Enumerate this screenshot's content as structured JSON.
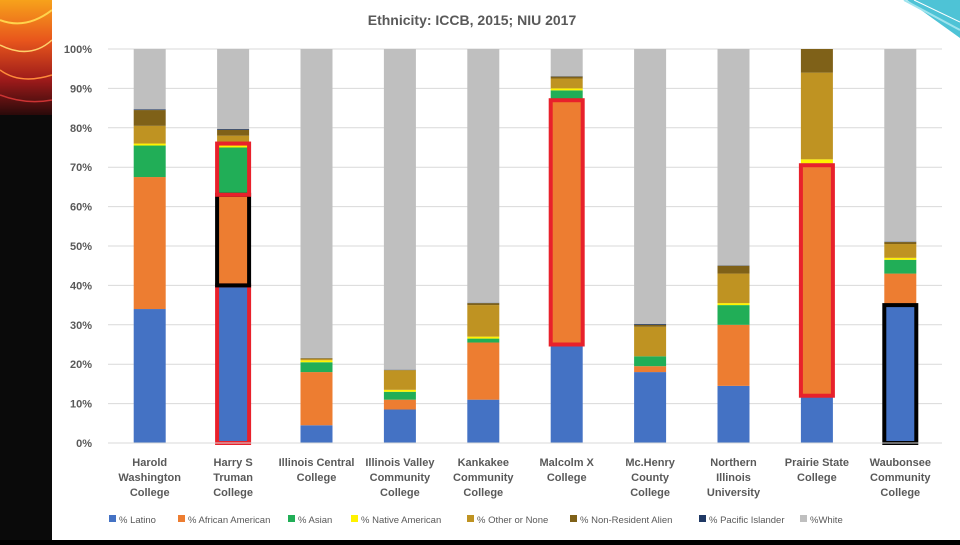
{
  "colors": {
    "latino": "#4472C4",
    "african_american": "#ED7D31",
    "asian": "#21AE57",
    "native_american": "#FFF200",
    "other": "#BF9322",
    "non_resident_alien": "#7F6118",
    "pacific_islander": "#1F3864",
    "white": "#BFBFBF",
    "highlight_red": "#E8212B",
    "highlight_black": "#000000"
  },
  "chart_data": {
    "type": "bar",
    "stacked": true,
    "title": "Ethnicity: ICCB, 2015; NIU 2017",
    "ylim": [
      0,
      100
    ],
    "ytick_labels": [
      "0%",
      "10%",
      "20%",
      "30%",
      "40%",
      "50%",
      "60%",
      "70%",
      "80%",
      "90%",
      "100%"
    ],
    "grid": true,
    "legend_position": "bottom",
    "categories": [
      "Harold Washington College",
      "Harry S Truman College",
      "Illinois Central College",
      "Illinois Valley Community College",
      "Kankakee Community College",
      "Malcolm X College",
      "Mc.Henry County College",
      "Northern Illinois University",
      "Prairie State College",
      "Waubonsee Community College"
    ],
    "category_lines": [
      [
        "Harold",
        "Washington",
        "College"
      ],
      [
        "Harry S",
        "Truman",
        "College"
      ],
      [
        "Illinois Central",
        "College"
      ],
      [
        "Illinois Valley",
        "Community",
        "College"
      ],
      [
        "Kankakee",
        "Community",
        "College"
      ],
      [
        "Malcolm X",
        "College"
      ],
      [
        "Mc.Henry",
        "County",
        "College"
      ],
      [
        "Northern",
        "Illinois",
        "University"
      ],
      [
        "Prairie State",
        "College"
      ],
      [
        "Waubonsee",
        "Community",
        "College"
      ]
    ],
    "series": [
      {
        "name": "% Latino",
        "color_key": "latino",
        "values": [
          34,
          40,
          4.5,
          8.5,
          11,
          25,
          18,
          14.5,
          12,
          35
        ]
      },
      {
        "name": "% African American",
        "color_key": "african_american",
        "values": [
          33.5,
          23,
          13.5,
          2.5,
          14.5,
          62,
          1.5,
          15.5,
          58.5,
          8
        ]
      },
      {
        "name": "% Asian",
        "color_key": "asian",
        "values": [
          8,
          12,
          2.5,
          2,
          1,
          2.5,
          2.5,
          5,
          0.5,
          3.5
        ]
      },
      {
        "name": "% Native American",
        "color_key": "native_american",
        "values": [
          0.5,
          0.5,
          0.5,
          0.5,
          0.5,
          0.5,
          0,
          0.5,
          1,
          0.5
        ]
      },
      {
        "name": "% Other or None",
        "color_key": "other",
        "values": [
          4.5,
          2.5,
          0.5,
          5,
          8,
          2.5,
          7.5,
          7.5,
          22,
          3.5
        ]
      },
      {
        "name": "% Non-Resident Alien",
        "color_key": "non_resident_alien",
        "values": [
          4,
          1.5,
          0,
          0,
          0.5,
          0.5,
          0.5,
          2,
          6,
          0.5
        ]
      },
      {
        "name": "% Pacific Islander",
        "color_key": "pacific_islander",
        "values": [
          0.2,
          0.2,
          0.1,
          0.1,
          0.1,
          0.1,
          0.2,
          0.1,
          0,
          0.1
        ]
      },
      {
        "name": "%White",
        "color_key": "white",
        "values": [
          15.3,
          20.3,
          78.4,
          81.4,
          64.4,
          6.9,
          69.8,
          54.9,
          0,
          48.9
        ]
      }
    ],
    "highlights": [
      {
        "category_index": 1,
        "from": 0,
        "to": 40,
        "color_key": "highlight_red"
      },
      {
        "category_index": 1,
        "from": 40,
        "to": 63,
        "color_key": "highlight_black"
      },
      {
        "category_index": 1,
        "from": 63,
        "to": 76,
        "color_key": "highlight_red"
      },
      {
        "category_index": 5,
        "from": 25,
        "to": 87,
        "color_key": "highlight_red"
      },
      {
        "category_index": 8,
        "from": 12,
        "to": 70.5,
        "color_key": "highlight_red"
      },
      {
        "category_index": 9,
        "from": 0,
        "to": 35,
        "color_key": "highlight_black"
      }
    ]
  }
}
